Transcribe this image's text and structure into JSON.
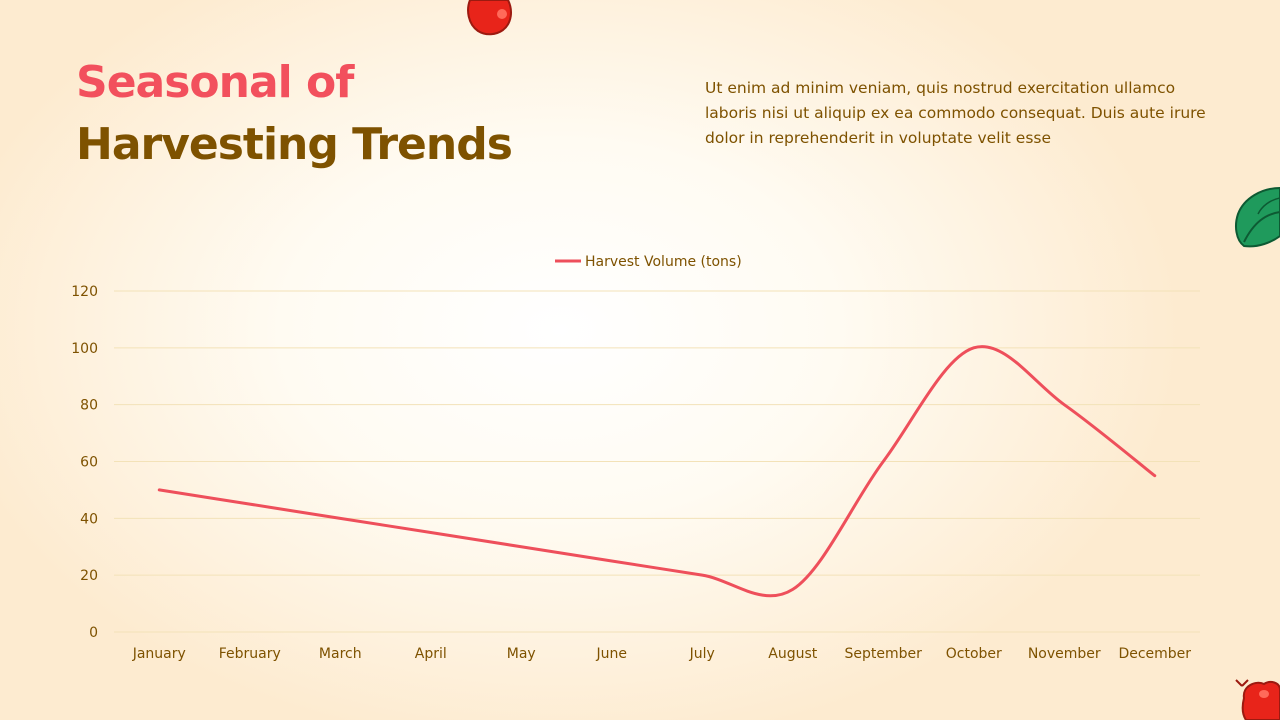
{
  "slide": {
    "title_line1": "Seasonal of",
    "title_line2": "Harvesting Trends",
    "description": "Ut enim ad minim veniam, quis nostrud exercitation ullamco laboris nisi ut aliquip ex ea commodo consequat. Duis aute irure dolor in reprehenderit in voluptate velit esse"
  },
  "colors": {
    "title_accent": "#f2505d",
    "title_dark": "#7e5200",
    "line": "#ee4f5b",
    "grid": "#f3e2b8",
    "text": "#7e5200"
  },
  "decorations": [
    "apple-icon",
    "leaf-icon",
    "apple-icon"
  ],
  "chart_data": {
    "type": "line",
    "smooth": true,
    "categories": [
      "January",
      "February",
      "March",
      "April",
      "May",
      "June",
      "July",
      "August",
      "September",
      "October",
      "November",
      "December"
    ],
    "series": [
      {
        "name": "Harvest Volume (tons)",
        "values": [
          50,
          45,
          40,
          35,
          30,
          25,
          20,
          15,
          60,
          100,
          80,
          55
        ]
      }
    ],
    "yticks": [
      0,
      20,
      40,
      60,
      80,
      100,
      120
    ],
    "ylim": [
      0,
      120
    ],
    "grid": true,
    "legend": "top-center"
  }
}
